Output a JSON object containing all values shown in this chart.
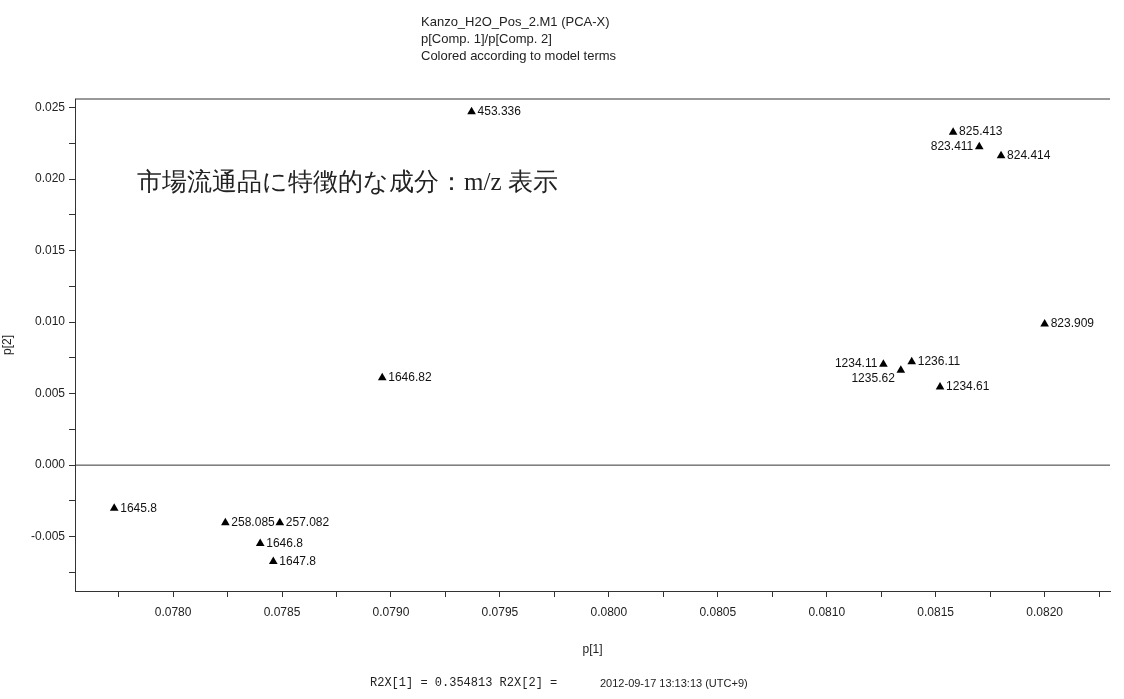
{
  "chart_data": {
    "type": "scatter",
    "title": "Kanzo_H2O_Pos_2.M1 (PCA-X)",
    "subtitle": "p[Comp. 1]/p[Comp. 2]\nColored according to model terms",
    "xlabel": "p[1]",
    "ylabel": "p[2]",
    "annotations": [
      "市場流通品に特徴的な成分：m/z 表示",
      "R2X[1] = 0.354813 R2X[2] =",
      "2012-09-17 13:13:13 (UTC+9)"
    ],
    "series": [
      {
        "name": "453.336",
        "color": "#000000",
        "x": [
          0.07937
        ],
        "values": [
          0.02471
        ]
      },
      {
        "name": "825.413",
        "color": "#000000",
        "x": [
          0.08158
        ],
        "values": [
          0.02328
        ]
      },
      {
        "name": "823.411",
        "color": "#000000",
        "x": [
          0.0817
        ],
        "values": [
          0.02227
        ]
      },
      {
        "name": "824.414",
        "color": "#000000",
        "x": [
          0.0818
        ],
        "values": [
          0.02164
        ]
      },
      {
        "name": "823.909",
        "color": "#000000",
        "x": [
          0.082
        ],
        "values": [
          0.00987
        ]
      },
      {
        "name": "1234.11",
        "color": "#000000",
        "x": [
          0.08126
        ],
        "values": [
          0.00706
        ]
      },
      {
        "name": "1236.11",
        "color": "#000000",
        "x": [
          0.08139
        ],
        "values": [
          0.00723
        ]
      },
      {
        "name": "1235.62",
        "color": "#000000",
        "x": [
          0.08134
        ],
        "values": [
          0.00664
        ]
      },
      {
        "name": "1234.61",
        "color": "#000000",
        "x": [
          0.08152
        ],
        "values": [
          0.00546
        ]
      },
      {
        "name": "1646.82",
        "color": "#000000",
        "x": [
          0.07896
        ],
        "values": [
          0.00611
        ]
      },
      {
        "name": "1645.8",
        "color": "#000000",
        "x": [
          0.07773
        ],
        "values": [
          -0.00302
        ]
      },
      {
        "name": "258.085",
        "color": "#000000",
        "x": [
          0.07824
        ],
        "values": [
          -0.00402
        ]
      },
      {
        "name": "257.082",
        "color": "#000000",
        "x": [
          0.07849
        ],
        "values": [
          -0.00402
        ]
      },
      {
        "name": "1646.8",
        "color": "#000000",
        "x": [
          0.0784
        ],
        "values": [
          -0.00548
        ]
      },
      {
        "name": "1647.8",
        "color": "#000000",
        "x": [
          0.07846
        ],
        "values": [
          -0.00674
        ]
      }
    ],
    "marker": "triangle",
    "xlim": [
      0.07755,
      0.0823
    ],
    "xticks": [
      {
        "value": 0.07775,
        "label": null
      },
      {
        "value": 0.078,
        "label": "0.0780"
      },
      {
        "value": 0.07825,
        "label": null
      },
      {
        "value": 0.0785,
        "label": "0.0785"
      },
      {
        "value": 0.07875,
        "label": null
      },
      {
        "value": 0.079,
        "label": "0.0790"
      },
      {
        "value": 0.07925,
        "label": null
      },
      {
        "value": 0.0795,
        "label": "0.0795"
      },
      {
        "value": 0.07975,
        "label": null
      },
      {
        "value": 0.08,
        "label": "0.0800"
      },
      {
        "value": 0.08025,
        "label": null
      },
      {
        "value": 0.0805,
        "label": "0.0805"
      },
      {
        "value": 0.08075,
        "label": null
      },
      {
        "value": 0.081,
        "label": "0.0810"
      },
      {
        "value": 0.08125,
        "label": null
      },
      {
        "value": 0.0815,
        "label": "0.0815"
      },
      {
        "value": 0.08175,
        "label": null
      },
      {
        "value": 0.082,
        "label": "0.0820"
      },
      {
        "value": 0.08225,
        "label": null
      }
    ],
    "ylim": [
      -0.0088,
      0.0256
    ],
    "yticks": [
      {
        "value": -0.0075,
        "label": null
      },
      {
        "value": -0.005,
        "label": "-0.005"
      },
      {
        "value": -0.0025,
        "label": null
      },
      {
        "value": 0,
        "label": "0.000"
      },
      {
        "value": 0.0025,
        "label": null
      },
      {
        "value": 0.005,
        "label": "0.005"
      },
      {
        "value": 0.0075,
        "label": null
      },
      {
        "value": 0.01,
        "label": "0.010"
      },
      {
        "value": 0.0125,
        "label": null
      },
      {
        "value": 0.015,
        "label": "0.015"
      },
      {
        "value": 0.0175,
        "label": null
      },
      {
        "value": 0.02,
        "label": "0.020"
      },
      {
        "value": 0.0225,
        "label": null
      },
      {
        "value": 0.025,
        "label": "0.025"
      }
    ],
    "ref_lines": [
      {
        "axis": "y",
        "value": 0
      }
    ],
    "grid": false,
    "legend": false
  }
}
